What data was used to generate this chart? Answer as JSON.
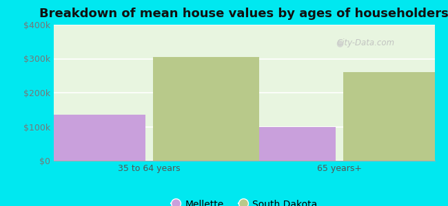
{
  "title": "Breakdown of mean house values by ages of householders",
  "categories": [
    "35 to 64 years",
    "65 years+"
  ],
  "mellette_values": [
    135000,
    100000
  ],
  "south_dakota_values": [
    305000,
    260000
  ],
  "mellette_color": "#c9a0dc",
  "south_dakota_color": "#b8c98a",
  "background_color": "#00e8f0",
  "plot_bg_top": "#e8f5e0",
  "plot_bg_bottom": "#c8efc0",
  "ylim": [
    0,
    400000
  ],
  "yticks": [
    0,
    100000,
    200000,
    300000,
    400000
  ],
  "ytick_labels": [
    "$0",
    "$100k",
    "$200k",
    "$300k",
    "$400k"
  ],
  "bar_width": 0.28,
  "legend_mellette": "Mellette",
  "legend_south_dakota": "South Dakota",
  "title_fontsize": 13,
  "tick_fontsize": 9,
  "legend_fontsize": 10,
  "watermark": "City-Data.com"
}
